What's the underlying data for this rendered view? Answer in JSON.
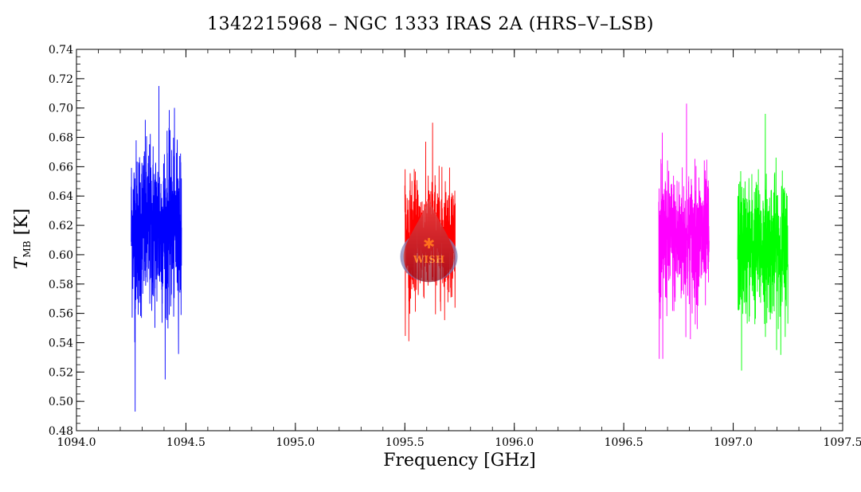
{
  "chart_data": {
    "type": "line",
    "title": "1342215968 – NGC 1333 IRAS 2A (HRS–V–LSB)",
    "xlabel": "Frequency [GHz]",
    "ylabel": {
      "symbol": "T",
      "subscript": "MB",
      "unit": "[K]"
    },
    "xlim": [
      1094.0,
      1097.5
    ],
    "ylim": [
      0.48,
      0.74
    ],
    "x_ticks": [
      "1094.0",
      "1094.5",
      "1095.0",
      "1095.5",
      "1096.0",
      "1096.5",
      "1097.0",
      "1097.5"
    ],
    "y_ticks": [
      "0.48",
      "0.50",
      "0.52",
      "0.54",
      "0.56",
      "0.58",
      "0.60",
      "0.62",
      "0.64",
      "0.66",
      "0.68",
      "0.70",
      "0.72",
      "0.74"
    ],
    "grid": false,
    "series": [
      {
        "color": "#0000ff",
        "x_range": [
          1094.25,
          1094.48
        ],
        "mean": 0.618,
        "min": 0.493,
        "max": 0.715
      },
      {
        "color": "#ff0000",
        "x_range": [
          1095.5,
          1095.73
        ],
        "mean": 0.612,
        "min": 0.541,
        "max": 0.69
      },
      {
        "color": "#ff00ff",
        "x_range": [
          1096.66,
          1096.89
        ],
        "mean": 0.61,
        "min": 0.529,
        "max": 0.703
      },
      {
        "color": "#00ff00",
        "x_range": [
          1097.02,
          1097.25
        ],
        "mean": 0.605,
        "min": 0.521,
        "max": 0.696
      }
    ],
    "watermark": {
      "text": "WISH",
      "x": 1095.61,
      "y": 0.602
    }
  }
}
